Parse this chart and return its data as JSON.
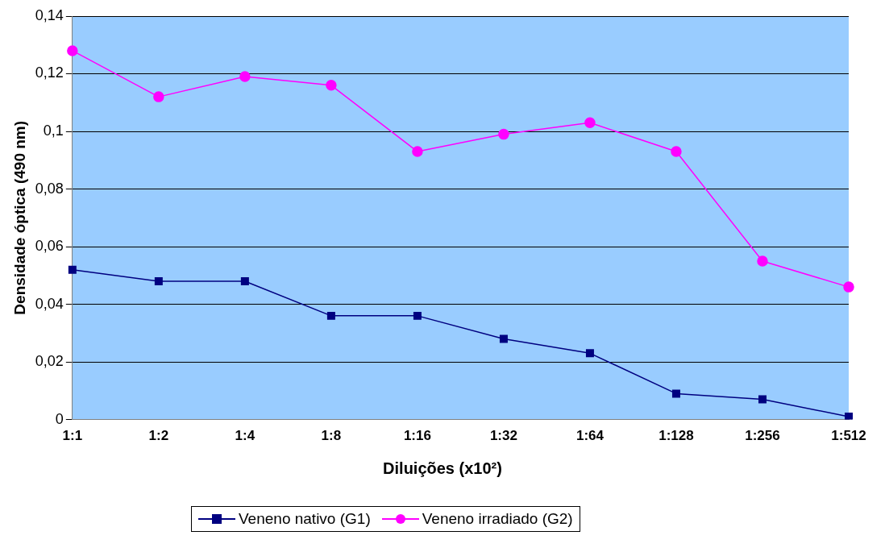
{
  "chart_data": {
    "type": "line",
    "xlabel": "Diluições (x10²)",
    "ylabel": "Densidade óptica (490 nm)",
    "categories": [
      "1:1",
      "1:2",
      "1:4",
      "1:8",
      "1:16",
      "1:32",
      "1:64",
      "1:128",
      "1:256",
      "1:512"
    ],
    "series": [
      {
        "name": "Veneno nativo (G1)",
        "color": "#000080",
        "marker": "square",
        "values": [
          0.052,
          0.048,
          0.048,
          0.036,
          0.036,
          0.028,
          0.023,
          0.009,
          0.007,
          0.001
        ]
      },
      {
        "name": "Veneno irradiado (G2)",
        "color": "#ff00ff",
        "marker": "circle",
        "values": [
          0.128,
          0.112,
          0.119,
          0.116,
          0.093,
          0.099,
          0.103,
          0.093,
          0.055,
          0.046
        ]
      }
    ],
    "ylim": [
      0,
      0.14
    ],
    "yticks": [
      "0",
      {
        "value": 0.02,
        "label": "0,02"
      },
      {
        "value": 0.04,
        "label": "0,04"
      },
      {
        "value": 0.06,
        "label": "0,06"
      },
      {
        "value": 0.08,
        "label": "0,08"
      },
      {
        "value": 0.1,
        "label": "0,1"
      },
      {
        "value": 0.12,
        "label": "0,12"
      },
      {
        "value": 0.14,
        "label": "0,14"
      }
    ],
    "grid": "y",
    "legend": "bottom"
  }
}
